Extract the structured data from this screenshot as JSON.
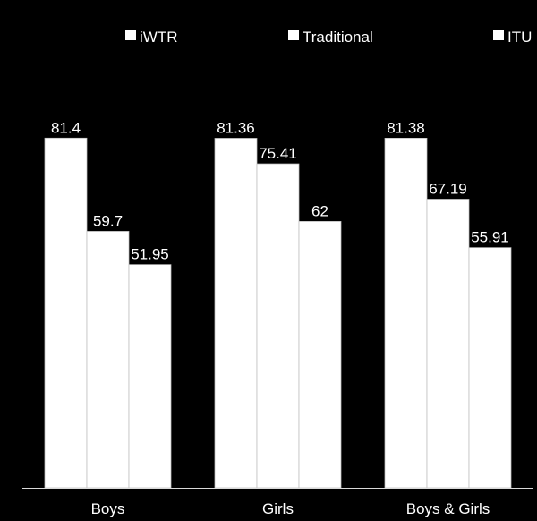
{
  "chart_data": {
    "type": "bar",
    "title": "",
    "xlabel": "",
    "ylabel": "",
    "ylim": [
      0,
      100
    ],
    "categories": [
      "Boys",
      "Girls",
      "Boys & Girls"
    ],
    "series": [
      {
        "name": "iWTR",
        "values": [
          81.4,
          81.36,
          81.38
        ],
        "labels": [
          "81.4",
          "81.36",
          "81.38"
        ]
      },
      {
        "name": "Traditional",
        "values": [
          59.7,
          75.41,
          67.19
        ],
        "labels": [
          "59.7",
          "75.41",
          "67.19"
        ]
      },
      {
        "name": "ITU",
        "values": [
          51.95,
          62,
          55.91
        ],
        "labels": [
          "51.95",
          "62",
          "55.91"
        ]
      }
    ],
    "legend_position": "top",
    "grid": false
  },
  "colors": {
    "background": "#000000",
    "bar_fill": "#ffffff",
    "bar_stroke": "#bfbfbf",
    "text": "#ffffff",
    "axis": "#d9d9d9"
  }
}
